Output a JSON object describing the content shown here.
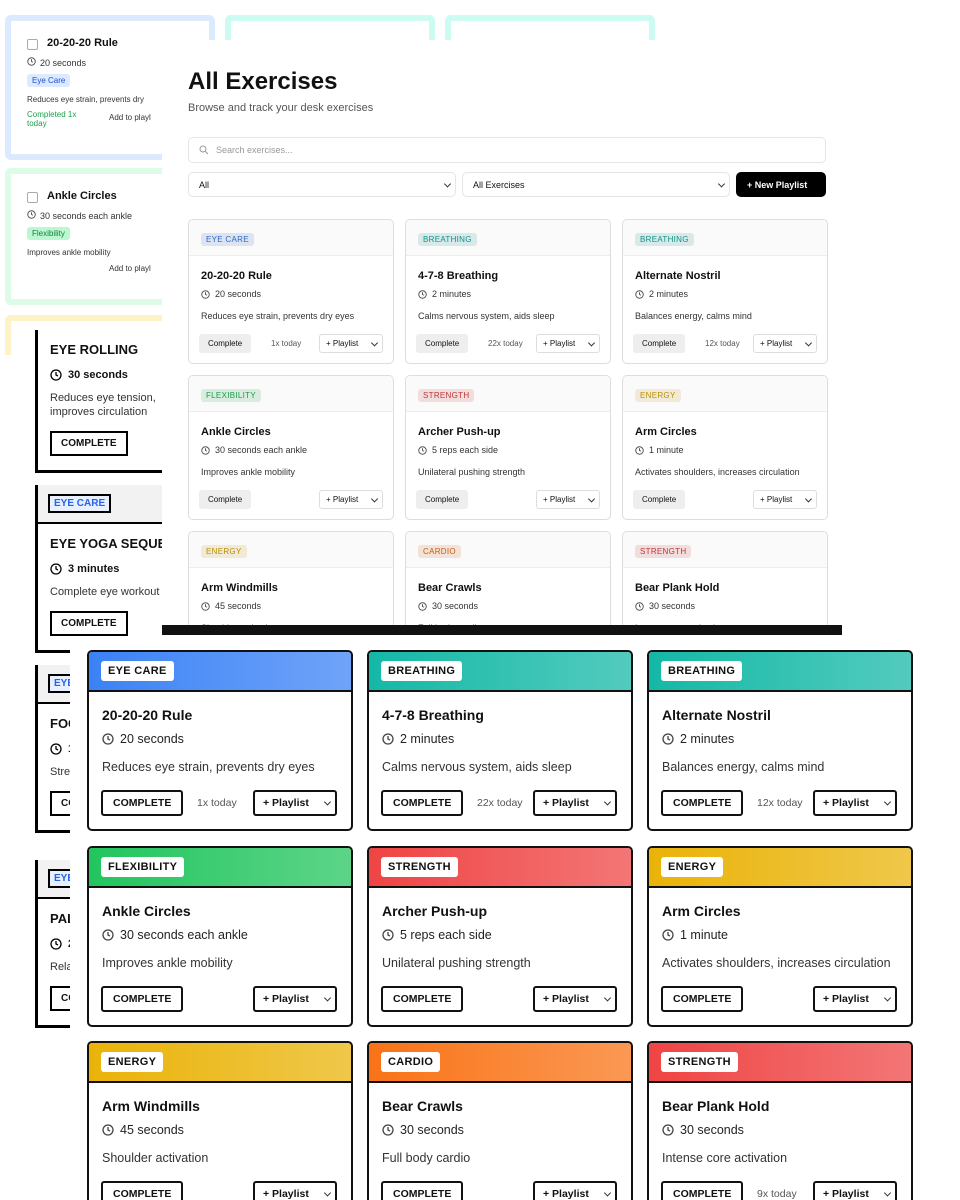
{
  "back_cards": [
    {
      "title": "20-20-20 Rule",
      "duration": "20 seconds",
      "tag": "Eye Care",
      "desc": "Reduces eye strain, prevents dry",
      "status": "Completed 1x today",
      "action": "Add to playl"
    },
    {
      "title": "Ankle Circles",
      "duration": "30 seconds each ankle",
      "tag": "Flexibility",
      "desc": "Improves ankle mobility",
      "action": "Add to playl"
    }
  ],
  "side_cards": [
    {
      "title": "EYE ROLLING",
      "duration": "30 seconds",
      "desc": "Reduces eye tension, improves circulation",
      "button": "COMPLETE"
    },
    {
      "tag": "EYE CARE",
      "title": "EYE YOGA SEQUE",
      "duration": "3 minutes",
      "desc": "Complete eye workout",
      "button": "COMPLETE"
    },
    {
      "tag": "EYE",
      "title": "FOC",
      "duration": "1",
      "desc": "Stre",
      "button": "CO"
    },
    {
      "tag": "EYE",
      "title": "PAL",
      "duration": "2",
      "desc": "Rela",
      "button": "CO"
    }
  ],
  "main": {
    "title": "All Exercises",
    "subtitle": "Browse and track your desk exercises",
    "search_placeholder": "Search exercises...",
    "filter_category": "All",
    "filter_list": "All Exercises",
    "new_playlist": "+ New Playlist",
    "complete": "Complete",
    "add_playlist": "+ Playlist",
    "cards": [
      {
        "tag": "EYE CARE",
        "title": "20-20-20 Rule",
        "duration": "20 seconds",
        "desc": "Reduces eye strain, prevents dry eyes",
        "count": "1x today",
        "color": "#3b82f6"
      },
      {
        "tag": "BREATHING",
        "title": "4-7-8 Breathing",
        "duration": "2 minutes",
        "desc": "Calms nervous system, aids sleep",
        "count": "22x today",
        "color": "#14b8a6"
      },
      {
        "tag": "BREATHING",
        "title": "Alternate Nostril",
        "duration": "2 minutes",
        "desc": "Balances energy, calms mind",
        "count": "12x today",
        "color": "#14b8a6"
      },
      {
        "tag": "FLEXIBILITY",
        "title": "Ankle Circles",
        "duration": "30 seconds each ankle",
        "desc": "Improves ankle mobility",
        "color": "#22c55e"
      },
      {
        "tag": "STRENGTH",
        "title": "Archer Push-up",
        "duration": "5 reps each side",
        "desc": "Unilateral pushing strength",
        "color": "#ef4444"
      },
      {
        "tag": "ENERGY",
        "title": "Arm Circles",
        "duration": "1 minute",
        "desc": "Activates shoulders, increases circulation",
        "color": "#eab308"
      },
      {
        "tag": "ENERGY",
        "title": "Arm Windmills",
        "duration": "45 seconds",
        "desc": "Shoulder activation",
        "color": "#eab308"
      },
      {
        "tag": "CARDIO",
        "title": "Bear Crawls",
        "duration": "30 seconds",
        "desc": "Full body cardio",
        "color": "#f97316"
      },
      {
        "tag": "STRENGTH",
        "title": "Bear Plank Hold",
        "duration": "30 seconds",
        "desc": "Intense core activation",
        "color": "#ef4444"
      }
    ]
  },
  "bold": {
    "complete": "COMPLETE",
    "add_playlist": "+ Playlist",
    "cards": [
      {
        "tag": "EYE CARE",
        "title": "20-20-20 Rule",
        "duration": "20 seconds",
        "desc": "Reduces eye strain, prevents dry eyes",
        "count": "1x today",
        "color": "#3b82f6"
      },
      {
        "tag": "BREATHING",
        "title": "4-7-8 Breathing",
        "duration": "2 minutes",
        "desc": "Calms nervous system, aids sleep",
        "count": "22x today",
        "color": "#14b8a6"
      },
      {
        "tag": "BREATHING",
        "title": "Alternate Nostril",
        "duration": "2 minutes",
        "desc": "Balances energy, calms mind",
        "count": "12x today",
        "color": "#14b8a6"
      },
      {
        "tag": "FLEXIBILITY",
        "title": "Ankle Circles",
        "duration": "30 seconds each ankle",
        "desc": "Improves ankle mobility",
        "color": "#22c55e"
      },
      {
        "tag": "STRENGTH",
        "title": "Archer Push-up",
        "duration": "5 reps each side",
        "desc": "Unilateral pushing strength",
        "color": "#ef4444"
      },
      {
        "tag": "ENERGY",
        "title": "Arm Circles",
        "duration": "1 minute",
        "desc": "Activates shoulders, increases circulation",
        "color": "#eab308"
      },
      {
        "tag": "ENERGY",
        "title": "Arm Windmills",
        "duration": "45 seconds",
        "desc": "Shoulder activation",
        "color": "#eab308"
      },
      {
        "tag": "CARDIO",
        "title": "Bear Crawls",
        "duration": "30 seconds",
        "desc": "Full body cardio",
        "color": "#f97316"
      },
      {
        "tag": "STRENGTH",
        "title": "Bear Plank Hold",
        "duration": "30 seconds",
        "desc": "Intense core activation",
        "count": "9x today",
        "color": "#ef4444"
      }
    ]
  }
}
